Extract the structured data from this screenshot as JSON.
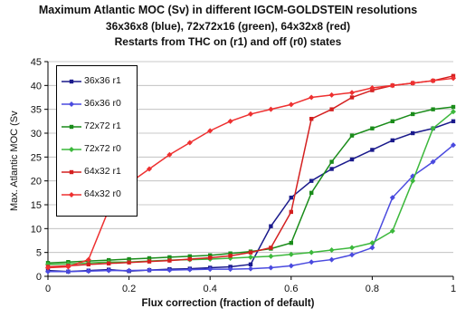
{
  "chart_data": {
    "type": "line",
    "title_lines": [
      "Maximum Atlantic MOC (Sv) in different IGCM-GOLDSTEIN resolutions",
      "36x36x8 (blue), 72x72x16 (green), 64x32x8 (red)",
      "Restarts from THC on (r1) and off (r0) states"
    ],
    "xlabel": "Flux correction (fraction of default)",
    "ylabel": "Max. Atlantic MOC (Sv",
    "xlim": [
      0,
      1
    ],
    "ylim": [
      0,
      45
    ],
    "x_ticks": [
      "0",
      "0.2",
      "0.4",
      "0.6",
      "0.8",
      "1"
    ],
    "y_ticks": [
      "0",
      "5",
      "10",
      "15",
      "20",
      "25",
      "30",
      "35",
      "40",
      "45"
    ],
    "legend_position": "top-left",
    "series": [
      {
        "name": "36x36 r1",
        "color": "#1a1a8c",
        "marker": "square",
        "x": [
          0,
          0.05,
          0.1,
          0.15,
          0.2,
          0.25,
          0.3,
          0.35,
          0.4,
          0.45,
          0.5,
          0.55,
          0.6,
          0.65,
          0.7,
          0.75,
          0.8,
          0.85,
          0.9,
          0.95,
          1.0
        ],
        "y": [
          1.2,
          1.0,
          1.2,
          1.4,
          1.1,
          1.3,
          1.5,
          1.6,
          1.8,
          2.0,
          2.5,
          10.5,
          16.5,
          20.0,
          22.5,
          24.5,
          26.5,
          28.5,
          30.0,
          31.0,
          32.5
        ]
      },
      {
        "name": "36x36 r0",
        "color": "#4a4adf",
        "marker": "diamond",
        "x": [
          0,
          0.05,
          0.1,
          0.15,
          0.2,
          0.25,
          0.3,
          0.35,
          0.4,
          0.45,
          0.5,
          0.55,
          0.6,
          0.65,
          0.7,
          0.75,
          0.8,
          0.85,
          0.9,
          0.95,
          1.0
        ],
        "y": [
          1.0,
          1.0,
          1.1,
          1.2,
          1.2,
          1.3,
          1.3,
          1.4,
          1.5,
          1.5,
          1.6,
          1.8,
          2.2,
          3.0,
          3.5,
          4.5,
          6.0,
          16.5,
          21.0,
          24.0,
          27.5
        ]
      },
      {
        "name": "72x72 r1",
        "color": "#1a8c1a",
        "marker": "square",
        "x": [
          0,
          0.05,
          0.1,
          0.15,
          0.2,
          0.25,
          0.3,
          0.35,
          0.4,
          0.45,
          0.5,
          0.55,
          0.6,
          0.65,
          0.7,
          0.75,
          0.8,
          0.85,
          0.9,
          0.95,
          1.0
        ],
        "y": [
          2.8,
          3.0,
          3.2,
          3.4,
          3.6,
          3.8,
          4.0,
          4.2,
          4.4,
          4.8,
          5.2,
          5.8,
          7.0,
          17.5,
          24.0,
          29.5,
          31.0,
          32.5,
          34.0,
          35.0,
          35.5
        ]
      },
      {
        "name": "72x72 r0",
        "color": "#3cb83c",
        "marker": "diamond",
        "x": [
          0,
          0.05,
          0.1,
          0.15,
          0.2,
          0.25,
          0.3,
          0.35,
          0.4,
          0.45,
          0.5,
          0.55,
          0.6,
          0.65,
          0.7,
          0.75,
          0.8,
          0.85,
          0.9,
          0.95,
          1.0
        ],
        "y": [
          2.5,
          2.6,
          2.8,
          3.0,
          3.0,
          3.2,
          3.4,
          3.5,
          3.6,
          3.8,
          4.0,
          4.2,
          4.6,
          5.0,
          5.5,
          6.0,
          7.0,
          9.5,
          20.0,
          31.0,
          34.5
        ]
      },
      {
        "name": "64x32 r1",
        "color": "#d42020",
        "marker": "square",
        "x": [
          0,
          0.05,
          0.1,
          0.15,
          0.2,
          0.25,
          0.3,
          0.35,
          0.4,
          0.45,
          0.5,
          0.55,
          0.6,
          0.65,
          0.7,
          0.75,
          0.8,
          0.85,
          0.9,
          0.95,
          1.0
        ],
        "y": [
          2.0,
          2.2,
          2.5,
          2.7,
          2.9,
          3.1,
          3.3,
          3.6,
          3.9,
          4.3,
          5.0,
          6.0,
          13.5,
          33.0,
          35.0,
          37.5,
          39.0,
          40.0,
          40.5,
          41.0,
          42.0
        ]
      },
      {
        "name": "64x32 r0",
        "color": "#ee3030",
        "marker": "diamond",
        "x": [
          0,
          0.05,
          0.1,
          0.15,
          0.2,
          0.25,
          0.3,
          0.35,
          0.4,
          0.45,
          0.5,
          0.55,
          0.6,
          0.65,
          0.7,
          0.75,
          0.8,
          0.85,
          0.9,
          0.95,
          1.0
        ],
        "y": [
          1.8,
          2.0,
          3.5,
          14.0,
          19.5,
          22.5,
          25.5,
          28.0,
          30.5,
          32.5,
          34.0,
          35.0,
          36.0,
          37.5,
          38.0,
          38.5,
          39.5,
          40.0,
          40.5,
          41.0,
          41.5
        ]
      }
    ]
  }
}
